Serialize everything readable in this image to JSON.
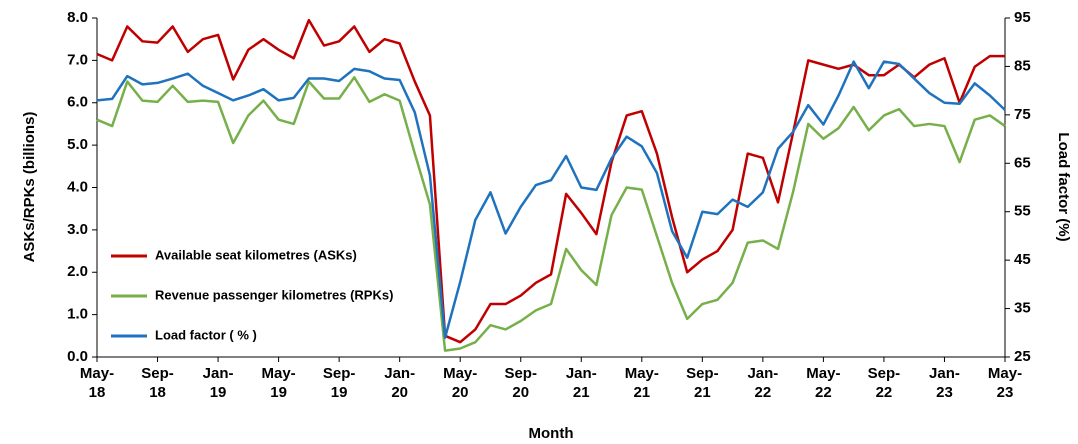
{
  "chart_data": {
    "type": "line",
    "ylabel": "ASKs/RPKs (billions)",
    "y2label": "Load factor (%)",
    "xlabel": "Month",
    "categories": [
      "May-\n18",
      null,
      null,
      null,
      "Sep-\n18",
      null,
      null,
      null,
      "Jan-\n19",
      null,
      null,
      null,
      "May-\n19",
      null,
      null,
      null,
      "Sep-\n19",
      null,
      null,
      null,
      "Jan-\n20",
      null,
      null,
      null,
      "May-\n20",
      null,
      null,
      null,
      "Sep-\n20",
      null,
      null,
      null,
      "Jan-\n21",
      null,
      null,
      null,
      "May-\n21",
      null,
      null,
      null,
      "Sep-\n21",
      null,
      null,
      null,
      "Jan-\n22",
      null,
      null,
      null,
      "May-\n22",
      null,
      null,
      null,
      "Sep-\n22",
      null,
      null,
      null,
      "Jan-\n23",
      null,
      null,
      null,
      "May-\n23"
    ],
    "ylim": [
      0,
      8
    ],
    "yticks": [
      {
        "value": 0,
        "label": "0.0"
      },
      {
        "value": 1,
        "label": "1.0"
      },
      {
        "value": 2,
        "label": "2.0"
      },
      {
        "value": 3,
        "label": "3.0"
      },
      {
        "value": 4,
        "label": "4.0"
      },
      {
        "value": 5,
        "label": "5.0"
      },
      {
        "value": 6,
        "label": "6.0"
      },
      {
        "value": 7,
        "label": "7.0"
      },
      {
        "value": 8,
        "label": "8.0"
      }
    ],
    "y2lim": [
      25,
      95
    ],
    "y2ticks": [
      25,
      35,
      45,
      55,
      65,
      75,
      85,
      95
    ],
    "legend": "left",
    "grid": false,
    "series": [
      {
        "name": "Available seat kilometres (ASKs)",
        "color": "#c00000",
        "axis": "y",
        "values": [
          7.15,
          7.0,
          7.8,
          7.45,
          7.42,
          7.8,
          7.2,
          7.5,
          7.6,
          6.55,
          7.25,
          7.5,
          7.25,
          7.05,
          7.95,
          7.35,
          7.45,
          7.8,
          7.2,
          7.5,
          7.4,
          6.5,
          5.7,
          0.5,
          0.35,
          0.65,
          1.25,
          1.25,
          1.45,
          1.75,
          1.95,
          3.85,
          3.4,
          2.9,
          4.6,
          5.7,
          5.8,
          4.8,
          3.3,
          2.0,
          2.3,
          2.5,
          3.0,
          4.8,
          4.7,
          3.65,
          5.3,
          7.0,
          6.9,
          6.8,
          6.9,
          6.65,
          6.65,
          6.9,
          6.6,
          6.9,
          7.05,
          6.0,
          6.85,
          7.1,
          7.1
        ]
      },
      {
        "name": "Revenue passenger kilometres (RPKs)",
        "color": "#77b04a",
        "axis": "y",
        "values": [
          5.6,
          5.45,
          6.5,
          6.05,
          6.02,
          6.4,
          6.02,
          6.05,
          6.02,
          5.05,
          5.7,
          6.05,
          5.6,
          5.5,
          6.5,
          6.1,
          6.1,
          6.6,
          6.02,
          6.2,
          6.05,
          4.8,
          3.6,
          0.15,
          0.2,
          0.35,
          0.75,
          0.65,
          0.85,
          1.1,
          1.25,
          2.55,
          2.05,
          1.7,
          3.35,
          4.0,
          3.95,
          2.85,
          1.75,
          0.9,
          1.25,
          1.35,
          1.75,
          2.7,
          2.75,
          2.55,
          3.9,
          5.5,
          5.15,
          5.4,
          5.9,
          5.35,
          5.7,
          5.85,
          5.45,
          5.5,
          5.45,
          4.6,
          5.6,
          5.7,
          5.45
        ]
      },
      {
        "name": "Load factor ( % )",
        "color": "#1f73be",
        "axis": "y2",
        "values": [
          78,
          78.3,
          83,
          81.3,
          81.6,
          82.5,
          83.5,
          81,
          79.5,
          78,
          79,
          80.3,
          78,
          78.5,
          82.5,
          82.5,
          82,
          84.5,
          84,
          82.5,
          82.2,
          75.5,
          62.5,
          29,
          40.5,
          53.3,
          59,
          50.5,
          56,
          60.5,
          61.5,
          66.5,
          60,
          59.5,
          66,
          70.5,
          68.5,
          63,
          51,
          45.5,
          55,
          54.5,
          57.5,
          56,
          59,
          68,
          71.5,
          77,
          73,
          79,
          86,
          80.5,
          86,
          85.5,
          82.5,
          79.5,
          77.5,
          77.3,
          81.5,
          79,
          76
        ]
      }
    ]
  }
}
